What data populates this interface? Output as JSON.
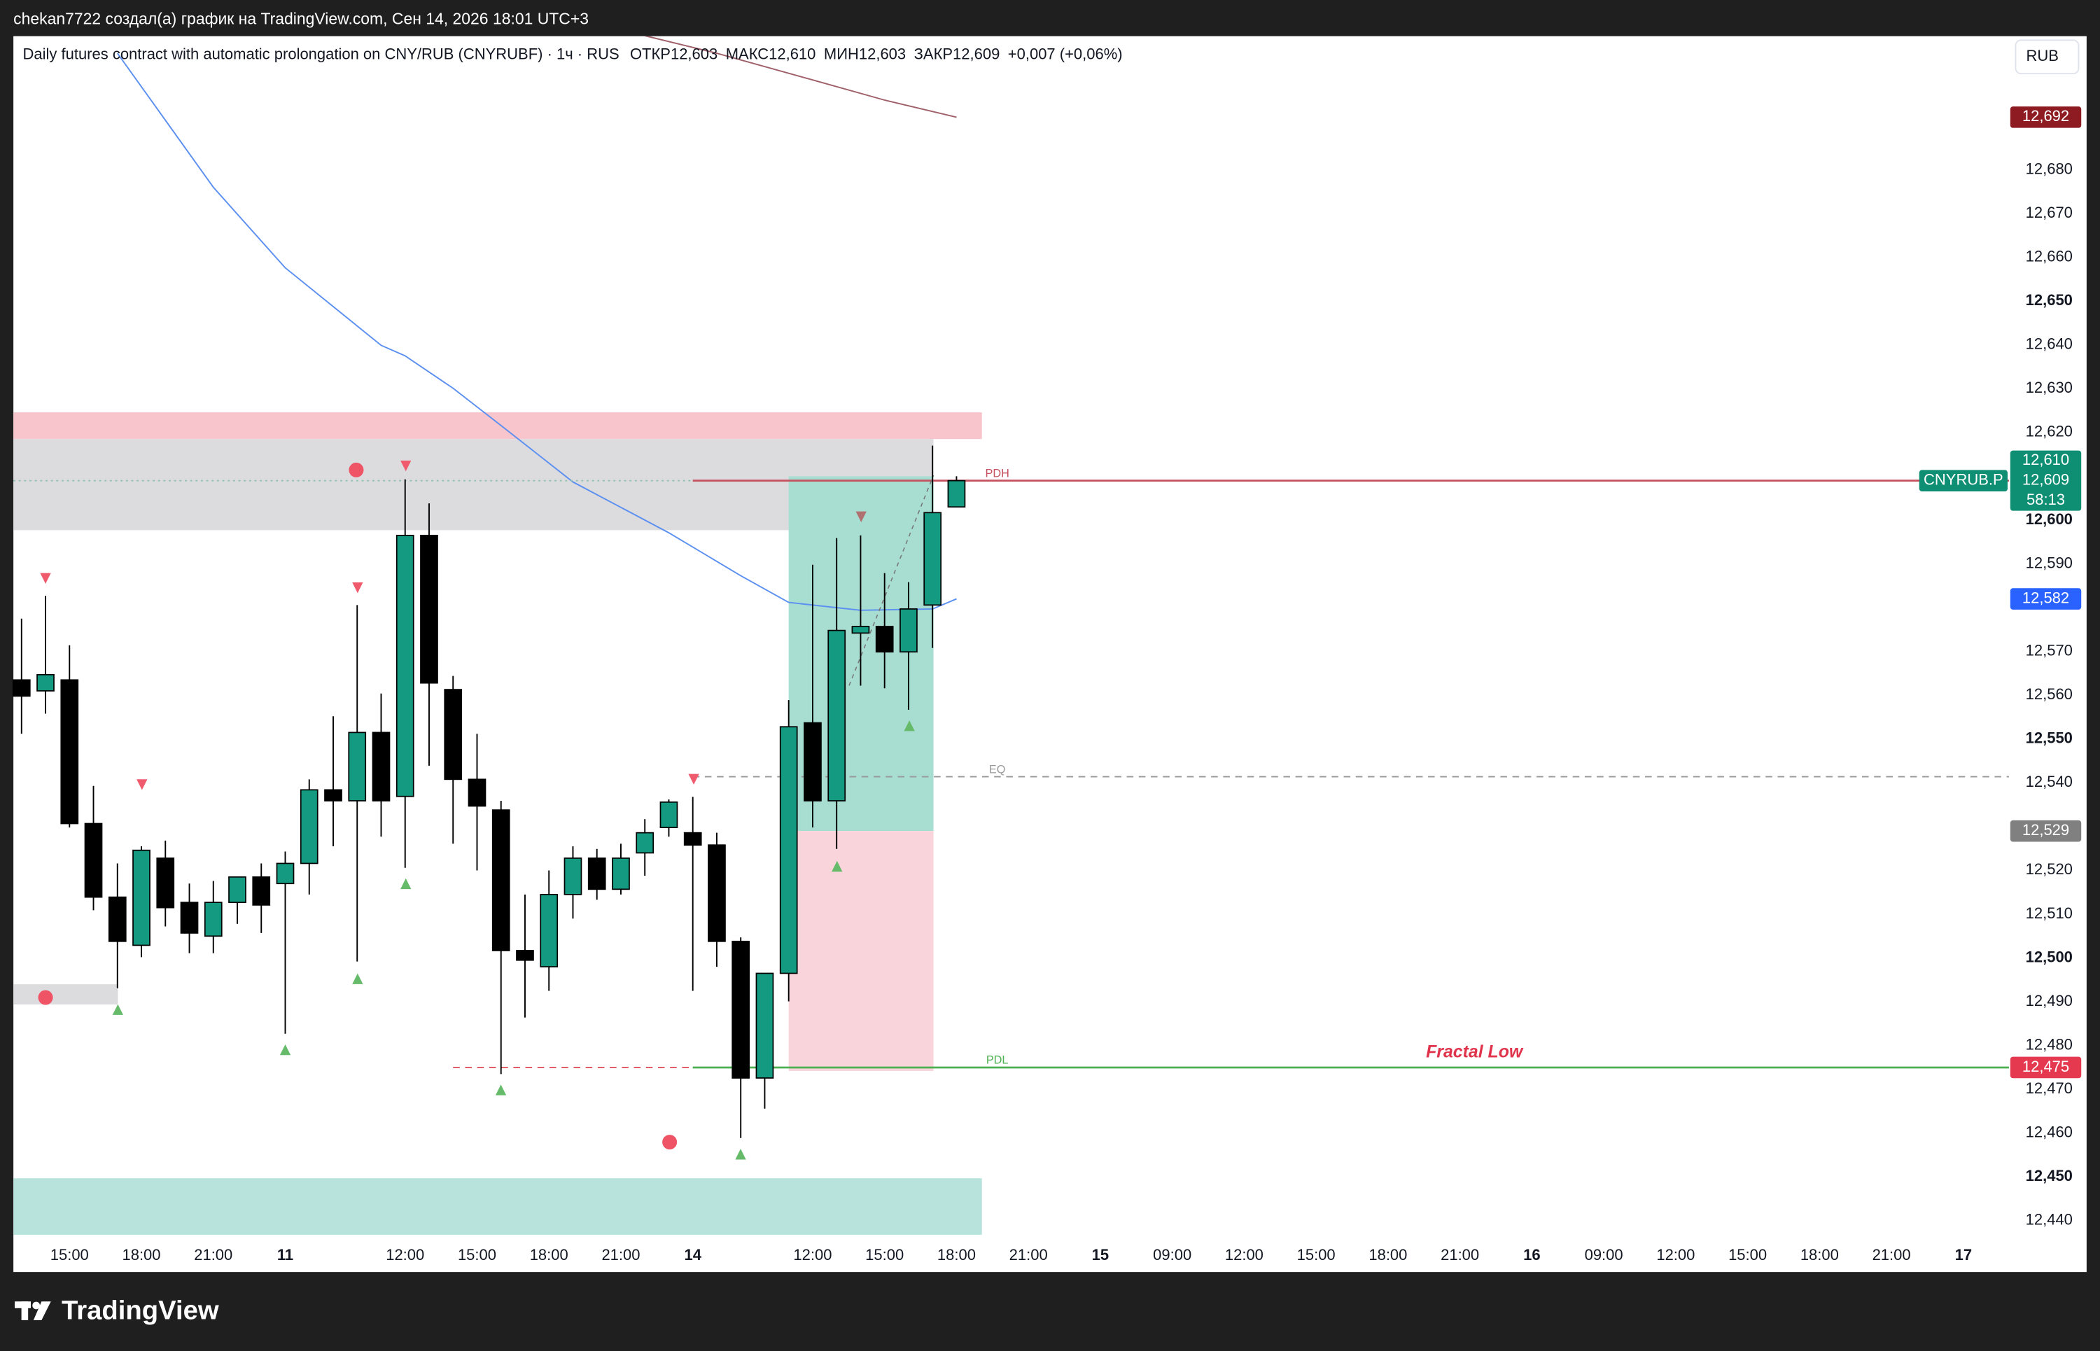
{
  "header": {
    "text": "chekan7722 создал(а) график на TradingView.com, Сен 14, 2026 18:01 UTC+3",
    "brand": "TradingView"
  },
  "chart_data": {
    "type": "candlestick",
    "title": "Daily futures contract with automatic prolongation on CNY/RUB (CNYRUBF) · 1ч · RUS",
    "ohlc": [
      {
        "label": "ОТКР",
        "value": "12,603"
      },
      {
        "label": "МАКС",
        "value": "12,610"
      },
      {
        "label": "МИН",
        "value": "12,603"
      },
      {
        "label": "ЗАКР",
        "value": "12,609"
      }
    ],
    "change": "+0,007 (+0,06%)",
    "currency": "RUB",
    "up_color": "#139a80",
    "down_color": "#000000",
    "open": [
      12563.5,
      12561.0,
      12563.5,
      12530.7,
      12513.9,
      12502.9,
      12522.8,
      12512.7,
      12505.0,
      12512.7,
      12518.5,
      12517.0,
      12521.6,
      12538.4,
      12535.9,
      12551.5,
      12536.9,
      12596.5,
      12561.3,
      12540.8,
      12533.8,
      12501.7,
      12498.0,
      12514.5,
      12522.8,
      12515.7,
      12524.0,
      12529.8,
      12528.6,
      12525.8,
      12503.8,
      12472.6,
      12496.5,
      12553.7,
      12535.9,
      12574.2,
      12575.7,
      12569.9,
      12580.6,
      12603
    ],
    "high": [
      12577.5,
      12582.7,
      12571.4,
      12539.3,
      12521.6,
      12525.5,
      12526.8,
      12517.0,
      12517.6,
      12518.5,
      12521.6,
      12524.3,
      12540.8,
      12555.2,
      12580.6,
      12560.4,
      12609.3,
      12603.8,
      12564.4,
      12551.2,
      12535.9,
      12514.5,
      12520.0,
      12525.5,
      12524.9,
      12526.1,
      12531.7,
      12536.2,
      12536.8,
      12528.6,
      12504.7,
      12496.5,
      12558.9,
      12589.8,
      12595.9,
      12596.5,
      12587.9,
      12585.8,
      12617.0,
      12610
    ],
    "low": [
      12551.2,
      12555.8,
      12529.8,
      12510.9,
      12493.1,
      12500.2,
      12507.2,
      12501.1,
      12501.1,
      12507.8,
      12505.7,
      12482.7,
      12514.5,
      12525.5,
      12499.2,
      12527.7,
      12520.6,
      12543.9,
      12526.1,
      12520.0,
      12473.5,
      12486.4,
      12492.5,
      12509.0,
      12513.3,
      12514.5,
      12518.8,
      12527.7,
      12492.5,
      12498.0,
      12458.9,
      12465.6,
      12490.1,
      12529.8,
      12524.9,
      12562.2,
      12561.6,
      12556.7,
      12570.8,
      12603
    ],
    "close": [
      12559.8,
      12564.7,
      12530.7,
      12513.9,
      12503.8,
      12524.6,
      12511.5,
      12505.7,
      12512.7,
      12518.5,
      12512.1,
      12521.6,
      12538.4,
      12535.9,
      12551.5,
      12535.9,
      12596.5,
      12562.8,
      12540.8,
      12534.7,
      12501.7,
      12499.5,
      12514.5,
      12522.8,
      12515.7,
      12522.8,
      12528.6,
      12535.6,
      12525.8,
      12503.8,
      12472.6,
      12496.5,
      12552.8,
      12535.9,
      12574.8,
      12575.7,
      12569.9,
      12579.7,
      12601.7,
      12609
    ],
    "xlim": [
      -0.34,
      82.9
    ],
    "ylim": [
      12428.3,
      12710.5
    ],
    "xticks": [
      {
        "value": 2,
        "label": "15:00"
      },
      {
        "value": 5,
        "label": "18:00"
      },
      {
        "value": 8,
        "label": "21:00"
      },
      {
        "value": 11,
        "label": "11"
      },
      {
        "value": 16,
        "label": "12:00"
      },
      {
        "value": 19,
        "label": "15:00"
      },
      {
        "value": 22,
        "label": "18:00"
      },
      {
        "value": 25,
        "label": "21:00"
      },
      {
        "value": 28,
        "label": "14"
      },
      {
        "value": 33,
        "label": "12:00"
      },
      {
        "value": 36,
        "label": "15:00"
      },
      {
        "value": 39,
        "label": "18:00"
      },
      {
        "value": 42,
        "label": "21:00"
      },
      {
        "value": 45,
        "label": "15"
      },
      {
        "value": 48,
        "label": "09:00"
      },
      {
        "value": 51,
        "label": "12:00"
      },
      {
        "value": 54,
        "label": "15:00"
      },
      {
        "value": 57,
        "label": "18:00"
      },
      {
        "value": 60,
        "label": "21:00"
      },
      {
        "value": 63,
        "label": "16"
      },
      {
        "value": 66,
        "label": "09:00"
      },
      {
        "value": 69,
        "label": "12:00"
      },
      {
        "value": 72,
        "label": "15:00"
      },
      {
        "value": 75,
        "label": "18:00"
      },
      {
        "value": 78,
        "label": "21:00"
      },
      {
        "value": 81,
        "label": "17"
      }
    ],
    "yticks": [
      {
        "value": 12440,
        "label": "12,440"
      },
      {
        "value": 12450,
        "label": "12,450"
      },
      {
        "value": 12460,
        "label": "12,460"
      },
      {
        "value": 12470,
        "label": "12,470"
      },
      {
        "value": 12480,
        "label": "12,480"
      },
      {
        "value": 12490,
        "label": "12,490"
      },
      {
        "value": 12500,
        "label": "12,500"
      },
      {
        "value": 12510,
        "label": "12,510"
      },
      {
        "value": 12520,
        "label": "12,520"
      },
      {
        "value": 12540,
        "label": "12,540"
      },
      {
        "value": 12550,
        "label": "12,550"
      },
      {
        "value": 12560,
        "label": "12,560"
      },
      {
        "value": 12570,
        "label": "12,570"
      },
      {
        "value": 12590,
        "label": "12,590"
      },
      {
        "value": 12600,
        "label": "12,600"
      },
      {
        "value": 12620,
        "label": "12,620"
      },
      {
        "value": 12630,
        "label": "12,630"
      },
      {
        "value": 12640,
        "label": "12,640"
      },
      {
        "value": 12650,
        "label": "12,650"
      },
      {
        "value": 12660,
        "label": "12,660"
      },
      {
        "value": 12670,
        "label": "12,670"
      },
      {
        "value": 12680,
        "label": "12,680"
      }
    ],
    "grid": false,
    "lines": [
      {
        "color": "#5b8ff0",
        "x": [
          4,
          8,
          11,
          15,
          16,
          18,
          20,
          23,
          27,
          30,
          32,
          35,
          38,
          39
        ],
        "values": [
          12706.6,
          12676.0,
          12657.6,
          12639.9,
          12637.5,
          12630.1,
          12621.6,
          12608.7,
          12597.1,
          12587.3,
          12581.2,
          12579.4,
          12579.7,
          12582
        ]
      },
      {
        "color": "#a0606a",
        "x": [
          26,
          29,
          33,
          36,
          39
        ],
        "values": [
          12710.6,
          12706.6,
          12700.5,
          12695.9,
          12692
        ]
      }
    ],
    "zones": [
      {
        "color": "#f8c5cc",
        "x": [
          -0.34,
          40.06
        ],
        "range": [
          12618.5,
          12624.6
        ]
      },
      {
        "color": "#dcdcdf",
        "x": [
          -0.34,
          38.04
        ],
        "range": [
          12597.7,
          12618.5
        ]
      },
      {
        "color": "#dcdcdf",
        "x": [
          -0.34,
          4.02
        ],
        "range": [
          12489.4,
          12494.0
        ]
      },
      {
        "color": "#b8e3dc",
        "x": [
          -0.34,
          40.06
        ],
        "range": [
          12436.8,
          12449.7
        ]
      },
      {
        "color": "#a8ddd1",
        "x": [
          32.0,
          38.04
        ],
        "range": [
          12529,
          12610
        ]
      },
      {
        "color": "#f9d5db",
        "x": [
          32.0,
          38.04
        ],
        "range": [
          12474.2,
          12529
        ]
      }
    ],
    "levels": [
      {
        "value": 12609,
        "x": [
          -0.34,
          28
        ],
        "color": "#8fc2ae",
        "style": "dotted"
      },
      {
        "name": "PDH",
        "value": 12609,
        "x": [
          28,
          82.9
        ],
        "color": "#c5505e",
        "style": "solid"
      },
      {
        "name": "EQ",
        "value": 12541.4,
        "x": [
          28,
          82.9
        ],
        "color": "#999999",
        "style": "dashed"
      },
      {
        "value": 12475,
        "x": [
          18,
          28
        ],
        "color": "#e05260",
        "style": "dashed"
      },
      {
        "name": "PDL",
        "value": 12475,
        "x": [
          28,
          82.9
        ],
        "color": "#4caf50",
        "style": "solid",
        "note": "Fractal Low"
      }
    ],
    "badges": [
      {
        "value": 12692,
        "label": "12,692",
        "color": "#8e1b22"
      },
      {
        "value": 12609,
        "lines": [
          "12,610",
          "12,609",
          "58:13"
        ],
        "symbol": "CNYRUB.P",
        "color": "#0e8f73"
      },
      {
        "value": 12582,
        "label": "12,582",
        "color": "#2962ff"
      },
      {
        "value": 12529,
        "label": "12,529",
        "color": "#808080"
      },
      {
        "value": 12475,
        "label": "12,475",
        "color": "#e53950"
      }
    ]
  }
}
